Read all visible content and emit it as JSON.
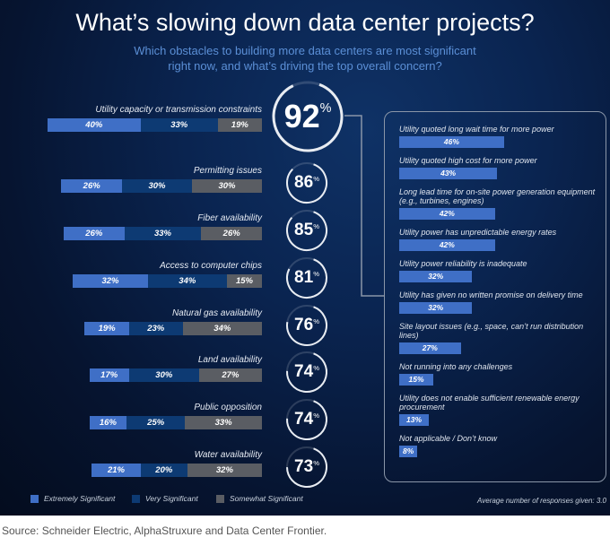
{
  "colors": {
    "extremely": "#3f6fc6",
    "very": "#0d3a73",
    "somewhat": "#5a5d63",
    "ring": "#e8ecf2",
    "detail_bar": "#3f6fc6"
  },
  "chart_data": [
    {
      "type": "bar",
      "orientation": "horizontal-stacked",
      "title": "What’s slowing down data center projects?",
      "subtitle": "Which obstacles to building more data centers are most significant right now, and what’s driving the top overall concern?",
      "legend": [
        "Extremely Significant",
        "Very Significant",
        "Somewhat Significant"
      ],
      "legend_placement": "bottom-left",
      "categories": [
        "Utility capacity or transmission constraints",
        "Permitting issues",
        "Fiber availability",
        "Access to computer chips",
        "Natural gas availability",
        "Land availability",
        "Public opposition",
        "Water availability"
      ],
      "series": [
        {
          "name": "Extremely Significant",
          "values": [
            40,
            26,
            26,
            32,
            19,
            17,
            16,
            21
          ]
        },
        {
          "name": "Very Significant",
          "values": [
            33,
            30,
            33,
            34,
            23,
            30,
            25,
            20
          ]
        },
        {
          "name": "Somewhat Significant",
          "values": [
            19,
            30,
            26,
            15,
            34,
            27,
            33,
            32
          ]
        }
      ],
      "totals": [
        92,
        86,
        85,
        81,
        76,
        74,
        74,
        73
      ],
      "value_suffix": "%"
    },
    {
      "type": "bar",
      "orientation": "horizontal",
      "categories": [
        "Utility quoted long wait time for more power",
        "Utility quoted high cost for more power",
        "Long lead time for on-site power generation equipment (e.g., turbines, engines)",
        "Utility power has unpredictable energy rates",
        "Utility power reliability is inadequate",
        "Utility has given no written promise on delivery time",
        "Site layout issues (e.g., space, can’t run distribution lines)",
        "Not running into any challenges",
        "Utility does not enable sufficient renewable energy procurement",
        "Not applicable / Don’t know"
      ],
      "values": [
        46,
        43,
        42,
        42,
        32,
        32,
        27,
        15,
        13,
        8
      ],
      "value_suffix": "%",
      "note": "Average number of responses given: 3.0"
    }
  ],
  "footer": {
    "source": "Source: Schneider Electric, AlphaStruxure and Data Center Frontier."
  }
}
